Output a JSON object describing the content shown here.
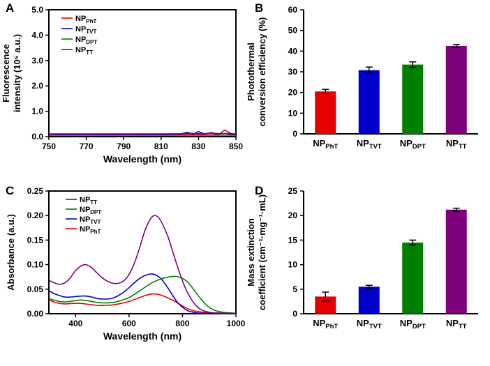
{
  "figure": {
    "background": "#ffffff",
    "panel_count": 4
  },
  "colors": {
    "red": "#e60000",
    "blue": "#0000cc",
    "green": "#007f00",
    "purple": "#7d007d",
    "axis": "#000000"
  },
  "chart_data": [
    {
      "id": "A",
      "panel_label": "A",
      "type": "line",
      "smooth": false,
      "xlabel": "Wavelength (nm)",
      "ylabel_lines": [
        "Fluorescence",
        "intensity (10⁵ a.u.)"
      ],
      "xlim": [
        750,
        850
      ],
      "ylim": [
        0,
        5
      ],
      "xticks": [
        [
          750,
          "750"
        ],
        [
          770,
          "770"
        ],
        [
          790,
          "790"
        ],
        [
          810,
          "810"
        ],
        [
          830,
          "830"
        ],
        [
          850,
          "850"
        ]
      ],
      "yticks": [
        [
          0,
          "0.0"
        ],
        [
          1,
          "1.0"
        ],
        [
          2,
          "2.0"
        ],
        [
          3,
          "3.0"
        ],
        [
          4,
          "4.0"
        ],
        [
          5,
          "5.0"
        ]
      ],
      "legend": [
        {
          "main": "NP",
          "sub": "PhT",
          "color": "#e60000"
        },
        {
          "main": "NP",
          "sub": "TVT",
          "color": "#0000cc"
        },
        {
          "main": "NP",
          "sub": "DPT",
          "color": "#007f00"
        },
        {
          "main": "NP",
          "sub": "TT",
          "color": "#7d007d"
        }
      ],
      "series": [
        {
          "name": "NP_DPT",
          "color": "#007f00",
          "points": [
            [
              750,
              0.055
            ],
            [
              760,
              0.054
            ],
            [
              770,
              0.056
            ],
            [
              780,
              0.055
            ],
            [
              790,
              0.054
            ],
            [
              800,
              0.056
            ],
            [
              810,
              0.055
            ],
            [
              820,
              0.054
            ],
            [
              830,
              0.056
            ],
            [
              840,
              0.055
            ],
            [
              850,
              0.054
            ]
          ]
        },
        {
          "name": "NP_PhT",
          "color": "#e60000",
          "points": [
            [
              750,
              0.07
            ],
            [
              758,
              0.068
            ],
            [
              766,
              0.071
            ],
            [
              774,
              0.069
            ],
            [
              782,
              0.07
            ],
            [
              790,
              0.071
            ],
            [
              798,
              0.069
            ],
            [
              806,
              0.07
            ],
            [
              814,
              0.068
            ],
            [
              822,
              0.071
            ],
            [
              830,
              0.074
            ],
            [
              836,
              0.07
            ],
            [
              841,
              0.1
            ],
            [
              844,
              0.26
            ],
            [
              847,
              0.14
            ],
            [
              850,
              0.08
            ]
          ]
        },
        {
          "name": "NP_TVT",
          "color": "#0000cc",
          "points": [
            [
              750,
              0.09
            ],
            [
              758,
              0.089
            ],
            [
              766,
              0.091
            ],
            [
              774,
              0.09
            ],
            [
              782,
              0.088
            ],
            [
              790,
              0.091
            ],
            [
              798,
              0.09
            ],
            [
              806,
              0.089
            ],
            [
              814,
              0.092
            ],
            [
              820,
              0.1
            ],
            [
              824,
              0.17
            ],
            [
              827,
              0.1
            ],
            [
              830,
              0.2
            ],
            [
              833,
              0.11
            ],
            [
              837,
              0.16
            ],
            [
              840,
              0.1
            ],
            [
              844,
              0.13
            ],
            [
              847,
              0.09
            ],
            [
              850,
              0.1
            ]
          ]
        },
        {
          "name": "NP_TT",
          "color": "#7d007d",
          "points": [
            [
              750,
              0.11
            ],
            [
              760,
              0.109
            ],
            [
              770,
              0.111
            ],
            [
              780,
              0.11
            ],
            [
              790,
              0.109
            ],
            [
              800,
              0.111
            ],
            [
              810,
              0.11
            ],
            [
              820,
              0.112
            ],
            [
              827,
              0.13
            ],
            [
              832,
              0.11
            ],
            [
              837,
              0.14
            ],
            [
              842,
              0.112
            ],
            [
              846,
              0.125
            ],
            [
              850,
              0.11
            ]
          ]
        }
      ]
    },
    {
      "id": "B",
      "panel_label": "B",
      "type": "bar",
      "ylabel_lines": [
        "Photothermal",
        "conversion efficiency (%)"
      ],
      "ylim": [
        0,
        60
      ],
      "yticks": [
        [
          0,
          "0"
        ],
        [
          10,
          "10"
        ],
        [
          20,
          "20"
        ],
        [
          30,
          "30"
        ],
        [
          40,
          "40"
        ],
        [
          50,
          "50"
        ],
        [
          60,
          "60"
        ]
      ],
      "bars": [
        {
          "main": "NP",
          "sub": "PhT",
          "color": "#e60000",
          "value": 20.5,
          "error": 1.0
        },
        {
          "main": "NP",
          "sub": "TVT",
          "color": "#0000cc",
          "value": 30.8,
          "error": 1.5
        },
        {
          "main": "NP",
          "sub": "DPT",
          "color": "#007f00",
          "value": 33.5,
          "error": 1.3
        },
        {
          "main": "NP",
          "sub": "TT",
          "color": "#7d007d",
          "value": 42.5,
          "error": 0.7
        }
      ]
    },
    {
      "id": "C",
      "panel_label": "C",
      "type": "line",
      "smooth": true,
      "xlabel": "Wavelength (nm)",
      "ylabel_lines": [
        "Absorbance (a.u.)"
      ],
      "xlim": [
        300,
        1000
      ],
      "ylim": [
        0,
        0.25
      ],
      "xticks": [
        [
          400,
          "400"
        ],
        [
          600,
          "600"
        ],
        [
          800,
          "800"
        ],
        [
          1000,
          "1000"
        ]
      ],
      "yticks": [
        [
          0,
          "0.00"
        ],
        [
          0.05,
          "0.05"
        ],
        [
          0.1,
          "0.10"
        ],
        [
          0.15,
          "0.15"
        ],
        [
          0.2,
          "0.20"
        ],
        [
          0.25,
          "0.25"
        ]
      ],
      "legend": [
        {
          "main": "NP",
          "sub": "TT",
          "color": "#7d007d"
        },
        {
          "main": "NP",
          "sub": "DPT",
          "color": "#007f00"
        },
        {
          "main": "NP",
          "sub": "TVT",
          "color": "#0000cc"
        },
        {
          "main": "NP",
          "sub": "PhT",
          "color": "#e60000"
        }
      ],
      "series": [
        {
          "name": "NP_PhT",
          "color": "#e60000",
          "points": [
            [
              300,
              0.028
            ],
            [
              330,
              0.022
            ],
            [
              360,
              0.02
            ],
            [
              390,
              0.021
            ],
            [
              420,
              0.021
            ],
            [
              450,
              0.019
            ],
            [
              480,
              0.017
            ],
            [
              510,
              0.017
            ],
            [
              540,
              0.018
            ],
            [
              570,
              0.021
            ],
            [
              600,
              0.025
            ],
            [
              630,
              0.031
            ],
            [
              660,
              0.037
            ],
            [
              685,
              0.04
            ],
            [
              705,
              0.04
            ],
            [
              725,
              0.037
            ],
            [
              750,
              0.031
            ],
            [
              775,
              0.024
            ],
            [
              800,
              0.016
            ],
            [
              825,
              0.009
            ],
            [
              850,
              0.005
            ],
            [
              900,
              0.002
            ],
            [
              1000,
              0.001
            ]
          ]
        },
        {
          "name": "NP_TVT",
          "color": "#0000cc",
          "points": [
            [
              300,
              0.047
            ],
            [
              320,
              0.041
            ],
            [
              340,
              0.037
            ],
            [
              360,
              0.034
            ],
            [
              380,
              0.034
            ],
            [
              400,
              0.035
            ],
            [
              420,
              0.036
            ],
            [
              440,
              0.036
            ],
            [
              460,
              0.034
            ],
            [
              480,
              0.031
            ],
            [
              500,
              0.03
            ],
            [
              520,
              0.03
            ],
            [
              540,
              0.032
            ],
            [
              560,
              0.037
            ],
            [
              580,
              0.044
            ],
            [
              600,
              0.053
            ],
            [
              620,
              0.063
            ],
            [
              640,
              0.072
            ],
            [
              660,
              0.078
            ],
            [
              680,
              0.081
            ],
            [
              700,
              0.079
            ],
            [
              720,
              0.071
            ],
            [
              740,
              0.057
            ],
            [
              760,
              0.04
            ],
            [
              780,
              0.024
            ],
            [
              800,
              0.013
            ],
            [
              820,
              0.006
            ],
            [
              840,
              0.003
            ],
            [
              870,
              0.001
            ],
            [
              1000,
              0.0
            ]
          ]
        },
        {
          "name": "NP_DPT",
          "color": "#007f00",
          "points": [
            [
              300,
              0.031
            ],
            [
              330,
              0.026
            ],
            [
              360,
              0.024
            ],
            [
              390,
              0.026
            ],
            [
              420,
              0.028
            ],
            [
              450,
              0.026
            ],
            [
              480,
              0.023
            ],
            [
              510,
              0.022
            ],
            [
              540,
              0.023
            ],
            [
              570,
              0.027
            ],
            [
              600,
              0.033
            ],
            [
              630,
              0.043
            ],
            [
              660,
              0.054
            ],
            [
              690,
              0.064
            ],
            [
              720,
              0.071
            ],
            [
              750,
              0.075
            ],
            [
              775,
              0.076
            ],
            [
              800,
              0.072
            ],
            [
              820,
              0.064
            ],
            [
              840,
              0.051
            ],
            [
              860,
              0.036
            ],
            [
              880,
              0.023
            ],
            [
              900,
              0.013
            ],
            [
              920,
              0.007
            ],
            [
              950,
              0.003
            ],
            [
              1000,
              0.001
            ]
          ]
        },
        {
          "name": "NP_TT",
          "color": "#7d007d",
          "points": [
            [
              300,
              0.068
            ],
            [
              320,
              0.063
            ],
            [
              340,
              0.06
            ],
            [
              360,
              0.063
            ],
            [
              380,
              0.073
            ],
            [
              400,
              0.088
            ],
            [
              420,
              0.097
            ],
            [
              435,
              0.1
            ],
            [
              455,
              0.096
            ],
            [
              475,
              0.086
            ],
            [
              500,
              0.073
            ],
            [
              520,
              0.066
            ],
            [
              540,
              0.062
            ],
            [
              560,
              0.062
            ],
            [
              580,
              0.067
            ],
            [
              600,
              0.08
            ],
            [
              620,
              0.103
            ],
            [
              640,
              0.135
            ],
            [
              660,
              0.17
            ],
            [
              680,
              0.193
            ],
            [
              695,
              0.2
            ],
            [
              710,
              0.196
            ],
            [
              725,
              0.183
            ],
            [
              745,
              0.158
            ],
            [
              765,
              0.124
            ],
            [
              785,
              0.09
            ],
            [
              805,
              0.06
            ],
            [
              825,
              0.037
            ],
            [
              845,
              0.02
            ],
            [
              865,
              0.01
            ],
            [
              885,
              0.005
            ],
            [
              910,
              0.002
            ],
            [
              950,
              0.001
            ],
            [
              1000,
              0.001
            ]
          ]
        }
      ]
    },
    {
      "id": "D",
      "panel_label": "D",
      "type": "bar",
      "ylabel_lines": [
        "Mass extinction",
        "coefficient (cm⁻¹·mg⁻¹·mL)"
      ],
      "ylim": [
        0,
        25
      ],
      "yticks": [
        [
          0,
          "0"
        ],
        [
          5,
          "5"
        ],
        [
          10,
          "10"
        ],
        [
          15,
          "15"
        ],
        [
          20,
          "20"
        ],
        [
          25,
          "25"
        ]
      ],
      "bars": [
        {
          "main": "NP",
          "sub": "PhT",
          "color": "#e60000",
          "value": 3.5,
          "error": 0.9
        },
        {
          "main": "NP",
          "sub": "TVT",
          "color": "#0000cc",
          "value": 5.5,
          "error": 0.3
        },
        {
          "main": "NP",
          "sub": "DPT",
          "color": "#007f00",
          "value": 14.5,
          "error": 0.5
        },
        {
          "main": "NP",
          "sub": "TT",
          "color": "#7d007d",
          "value": 21.2,
          "error": 0.3
        }
      ]
    }
  ]
}
